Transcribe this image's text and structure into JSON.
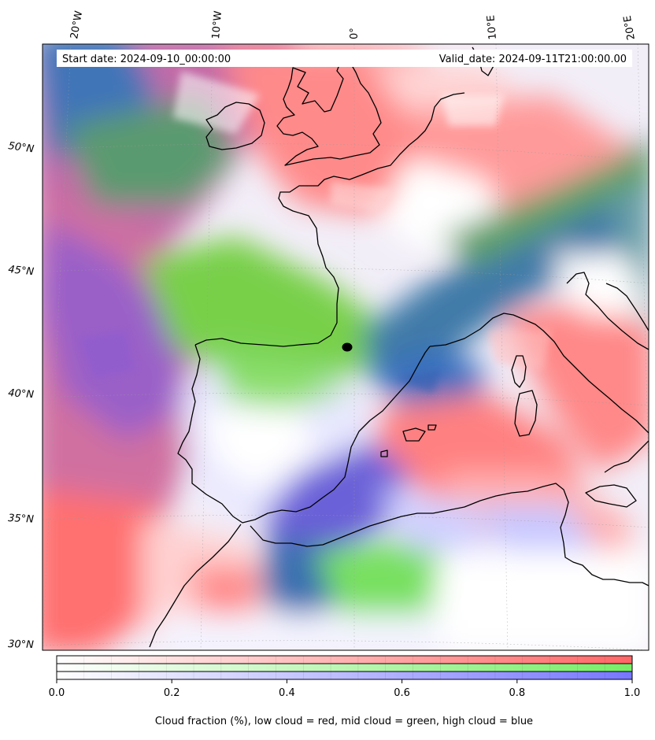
{
  "header": {
    "start_label": "Start date: 2024-09-10_00:00:00",
    "valid_label": "Valid_date: 2024-09-11T21:00:00.00"
  },
  "axes": {
    "lon_labels": [
      "20°W",
      "10°W",
      "0°",
      "10°E",
      "20°E"
    ],
    "lat_labels": [
      "50°N",
      "45°N",
      "40°N",
      "35°N",
      "30°N"
    ]
  },
  "colorbar": {
    "ticks": [
      "0.0",
      "0.2",
      "0.4",
      "0.6",
      "0.8",
      "1.0"
    ],
    "caption": "Cloud fraction (%), low cloud = red, mid cloud = green, high cloud = blue",
    "colors": {
      "low": "#ff6666",
      "mid": "#77ee66",
      "high": "#7777ff"
    }
  },
  "map": {
    "marker_icon": "location-dot-icon",
    "palette": {
      "low": "#ff7070",
      "mid": "#77e055",
      "high": "#6f6fff",
      "low_mid": "#d7a070",
      "low_high": "#b066c8",
      "mid_high": "#3f78a8",
      "clear": "#ffffff",
      "faint_high": "#d8d8ff",
      "faint_low": "#ffc8c8"
    }
  }
}
